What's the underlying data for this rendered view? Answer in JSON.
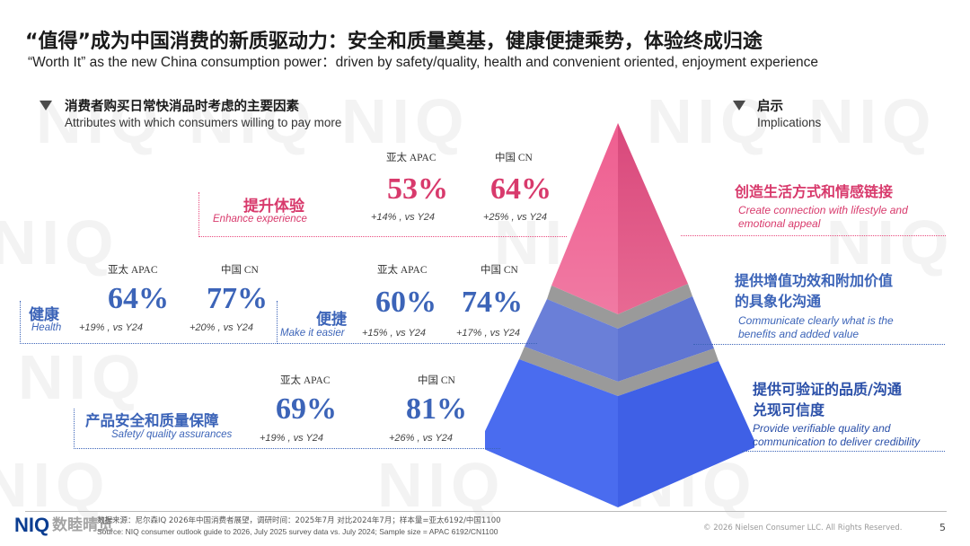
{
  "title": {
    "cn": "“值得”成为中国消费的新质驱动力：安全和质量奠基，健康便捷乘势，体验终成归途",
    "en": "“Worth It” as the new China consumption power：driven by safety/quality, health and convenient oriented, enjoyment experience"
  },
  "left_section": {
    "cn": "消费者购买日常快消品时考虑的主要因素",
    "en": "Attributes with which consumers willing to pay more"
  },
  "right_section": {
    "cn": "启示",
    "en": "Implications"
  },
  "column_headers": {
    "apac": "亚太 APAC",
    "cn": "中国 CN"
  },
  "attributes": [
    {
      "cn": "提升体验",
      "en": "Enhance experience",
      "apac_pct": "53%",
      "apac_chg": "+14% , vs Y24",
      "cn_pct": "64%",
      "cn_chg": "+25% , vs Y24"
    },
    {
      "cn": "健康",
      "en": "Health",
      "apac_pct": "64%",
      "apac_chg": "+19% , vs Y24",
      "cn_pct": "77%",
      "cn_chg": "+20% , vs Y24"
    },
    {
      "cn": "便捷",
      "en": "Make it easier",
      "apac_pct": "60%",
      "apac_chg": "+15% , vs Y24",
      "cn_pct": "74%",
      "cn_chg": "+17% , vs Y24"
    },
    {
      "cn": "产品安全和质量保障",
      "en": "Safety/ quality assurances",
      "apac_pct": "69%",
      "apac_chg": "+19% , vs Y24",
      "cn_pct": "81%",
      "cn_chg": "+26% , vs Y24"
    }
  ],
  "implications": [
    {
      "cn1": "创造生活方式和情感链接",
      "cn2": "",
      "en1": "Create connection with lifestyle and",
      "en2": "emotional appeal"
    },
    {
      "cn1": "提供增值功效和附加价值",
      "cn2": "的具象化沟通",
      "en1": "Communicate clearly what is the",
      "en2": "benefits and added value"
    },
    {
      "cn1": "提供可验证的品质/沟通",
      "cn2": "兑现可信度",
      "en1": "Provide verifiable quality and",
      "en2": "communication to deliver credibility"
    }
  ],
  "footer": {
    "source_cn": "数据来源：尼尔森IQ 2026年中国消费者展望，调研时间：2025年7月 对比2024年7月；样本量=亚太6192/中国1100",
    "source_en": "Source: NIQ consumer outlook guide to 2026, July 2025 survey data vs. July 2024;  Sample size = APAC 6192/CN1100",
    "copyright": "© 2026 Nielsen Consumer LLC. All Rights Reserved.",
    "page": "5",
    "logo": "NIQ",
    "overlay": "数睦晴览"
  },
  "watermark_text": "NIQ",
  "colors": {
    "pink": "#e8497d",
    "pink_text": "#d83a6c",
    "blue": "#3c64b8",
    "pyramid_top": "#ee5d8e",
    "pyramid_mid": "#6f8ae6",
    "pyramid_bottom": "#4a6ff0"
  }
}
